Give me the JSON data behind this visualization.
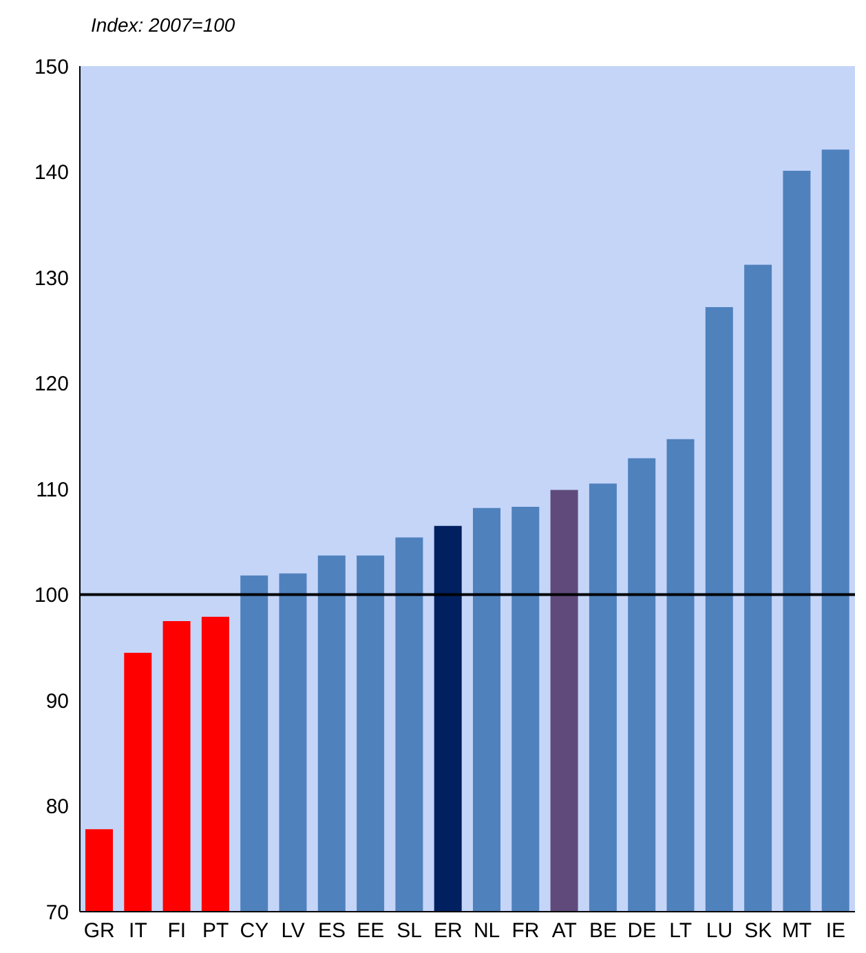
{
  "chart_data": {
    "type": "bar",
    "ylabel": "Index: 2007=100",
    "categories": [
      "GR",
      "IT",
      "FI",
      "PT",
      "CY",
      "LV",
      "ES",
      "EE",
      "SL",
      "ER",
      "NL",
      "FR",
      "AT",
      "BE",
      "DE",
      "LT",
      "LU",
      "SK",
      "MT",
      "IE"
    ],
    "values": [
      77.8,
      94.5,
      97.5,
      97.9,
      101.8,
      102.0,
      103.7,
      103.7,
      105.4,
      106.5,
      108.2,
      108.3,
      109.9,
      110.5,
      112.9,
      114.7,
      127.2,
      131.2,
      140.1,
      142.1
    ],
    "colors": [
      "#ff0000",
      "#ff0000",
      "#ff0000",
      "#ff0000",
      "#4f81bd",
      "#4f81bd",
      "#4f81bd",
      "#4f81bd",
      "#4f81bd",
      "#002060",
      "#4f81bd",
      "#4f81bd",
      "#604a7b",
      "#4f81bd",
      "#4f81bd",
      "#4f81bd",
      "#4f81bd",
      "#4f81bd",
      "#4f81bd",
      "#4f81bd"
    ],
    "ylim": [
      70,
      150
    ],
    "yticks": [
      70,
      80,
      90,
      100,
      110,
      120,
      130,
      140,
      150
    ],
    "ref_lines": [
      {
        "axis": "y",
        "value": 100,
        "color": "#000000"
      }
    ]
  }
}
